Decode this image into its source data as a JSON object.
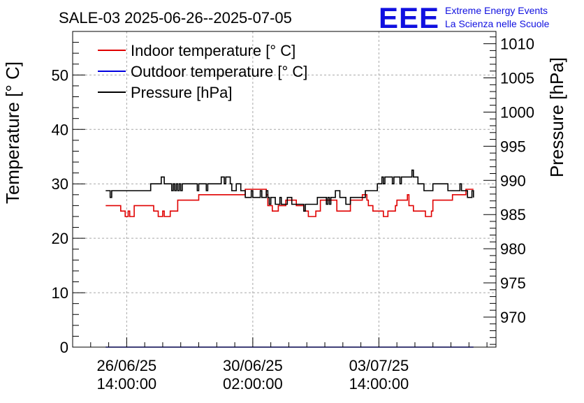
{
  "chart_data": {
    "type": "line",
    "title": "SALE-03 2025-06-26--2025-07-05",
    "logo": {
      "mark": "EEE",
      "line1": "Extreme Energy Events",
      "line2": "La Scienza nelle Scuole"
    },
    "ylabel_left": "Temperature [° C]",
    "ylabel_right": "Pressure [hPa]",
    "x_ticks": [
      {
        "date": "26/06/25",
        "time": "14:00:00",
        "hours": 0
      },
      {
        "date": "30/06/25",
        "time": "02:00:00",
        "hours": 84
      },
      {
        "date": "03/07/25",
        "time": "14:00:00",
        "hours": 168
      }
    ],
    "x_range_hours": [
      -36,
      246
    ],
    "y_left_range": [
      0,
      58
    ],
    "y_left_ticks": [
      0,
      10,
      20,
      30,
      40,
      50
    ],
    "y_right_range": [
      965.6,
      1011.8
    ],
    "y_right_ticks": [
      970,
      975,
      980,
      985,
      990,
      995,
      1000,
      1005,
      1010
    ],
    "grid": true,
    "legend_position": "top-left",
    "colors": {
      "indoor": "#e00000",
      "outdoor": "#0000e0",
      "pressure": "#000000",
      "logo": "#1010e0"
    },
    "series": [
      {
        "name": "Indoor temperature [° C]",
        "axis": "left",
        "color": "#e00000",
        "step": true,
        "points": [
          [
            -14,
            26
          ],
          [
            -6,
            26
          ],
          [
            -4,
            25
          ],
          [
            -2,
            25
          ],
          [
            -1,
            24
          ],
          [
            0,
            24
          ],
          [
            1,
            25
          ],
          [
            2,
            24
          ],
          [
            4,
            24
          ],
          [
            5,
            26
          ],
          [
            16,
            26
          ],
          [
            18,
            25
          ],
          [
            20,
            25
          ],
          [
            21,
            24
          ],
          [
            23,
            24
          ],
          [
            24,
            25
          ],
          [
            25,
            24
          ],
          [
            28,
            24
          ],
          [
            29,
            25
          ],
          [
            33,
            25
          ],
          [
            34,
            27
          ],
          [
            47,
            27
          ],
          [
            48,
            28
          ],
          [
            78,
            28
          ],
          [
            79,
            29
          ],
          [
            92,
            29
          ],
          [
            93,
            28
          ],
          [
            94,
            26
          ],
          [
            96,
            26
          ],
          [
            97,
            25
          ],
          [
            100,
            25
          ],
          [
            101,
            26
          ],
          [
            105,
            26
          ],
          [
            106,
            27
          ],
          [
            112,
            27
          ],
          [
            113,
            26
          ],
          [
            117,
            26
          ],
          [
            118,
            25
          ],
          [
            120,
            25
          ],
          [
            121,
            24
          ],
          [
            125,
            24
          ],
          [
            126,
            25
          ],
          [
            128,
            25
          ],
          [
            129,
            27
          ],
          [
            139,
            27
          ],
          [
            140,
            25
          ],
          [
            148,
            25
          ],
          [
            149,
            27
          ],
          [
            156,
            27
          ],
          [
            157,
            28
          ],
          [
            159,
            28
          ],
          [
            160,
            27
          ],
          [
            161,
            26
          ],
          [
            163,
            26
          ],
          [
            164,
            25
          ],
          [
            170,
            25
          ],
          [
            171,
            24
          ],
          [
            173,
            24
          ],
          [
            174,
            25
          ],
          [
            178,
            25
          ],
          [
            179,
            26
          ],
          [
            180,
            27
          ],
          [
            186,
            27
          ],
          [
            187,
            28
          ],
          [
            188,
            26
          ],
          [
            190,
            26
          ],
          [
            191,
            25
          ],
          [
            198,
            25
          ],
          [
            199,
            24
          ],
          [
            202,
            24
          ],
          [
            203,
            25
          ],
          [
            204,
            27
          ],
          [
            216,
            27
          ],
          [
            217,
            28
          ],
          [
            225,
            28
          ],
          [
            226,
            29
          ],
          [
            231,
            29
          ]
        ]
      },
      {
        "name": "Outdoor temperature [° C]",
        "axis": "left",
        "color": "#0000e0",
        "step": true,
        "points": [
          [
            -14,
            0
          ],
          [
            231,
            0
          ]
        ]
      },
      {
        "name": "Pressure [hPa]",
        "axis": "right",
        "color": "#000000",
        "step": true,
        "points": [
          [
            -14,
            988.5
          ],
          [
            -12,
            988.5
          ],
          [
            -11,
            987.5
          ],
          [
            -10,
            988.5
          ],
          [
            15,
            988.5
          ],
          [
            16,
            989.5
          ],
          [
            22,
            989.5
          ],
          [
            23,
            990.5
          ],
          [
            24,
            990.5
          ],
          [
            25,
            989.5
          ],
          [
            29,
            989.5
          ],
          [
            30,
            988.5
          ],
          [
            31,
            989.5
          ],
          [
            32,
            988.5
          ],
          [
            33,
            989.5
          ],
          [
            34,
            988.5
          ],
          [
            35,
            989.5
          ],
          [
            36,
            988.5
          ],
          [
            37,
            989.5
          ],
          [
            46,
            989.5
          ],
          [
            47,
            988.5
          ],
          [
            48,
            989.5
          ],
          [
            52,
            989.5
          ],
          [
            53,
            988.5
          ],
          [
            54,
            989.5
          ],
          [
            62,
            989.5
          ],
          [
            63,
            990.5
          ],
          [
            64,
            990.5
          ],
          [
            65,
            989.5
          ],
          [
            66,
            990.5
          ],
          [
            68,
            990.5
          ],
          [
            69,
            989.5
          ],
          [
            70,
            988.5
          ],
          [
            72,
            988.5
          ],
          [
            73,
            989.5
          ],
          [
            75,
            989.5
          ],
          [
            76,
            988.5
          ],
          [
            78,
            988.5
          ],
          [
            79,
            987.5
          ],
          [
            82,
            987.5
          ],
          [
            83,
            988.5
          ],
          [
            84,
            987.5
          ],
          [
            88,
            987.5
          ],
          [
            89,
            988.5
          ],
          [
            90,
            987.5
          ],
          [
            92,
            987.5
          ],
          [
            93,
            988.5
          ],
          [
            94,
            987.5
          ],
          [
            95,
            986.5
          ],
          [
            96,
            987.5
          ],
          [
            98,
            987.5
          ],
          [
            99,
            986.5
          ],
          [
            101,
            986.5
          ],
          [
            102,
            987.5
          ],
          [
            103,
            986.5
          ],
          [
            106,
            986.5
          ],
          [
            107,
            987.5
          ],
          [
            109,
            987.5
          ],
          [
            110,
            986.5
          ],
          [
            117,
            986.5
          ],
          [
            118,
            985.5
          ],
          [
            119,
            986.5
          ],
          [
            126,
            986.5
          ],
          [
            127,
            987.5
          ],
          [
            132,
            987.5
          ],
          [
            133,
            986.5
          ],
          [
            134,
            987.5
          ],
          [
            135,
            986.5
          ],
          [
            136,
            987.5
          ],
          [
            138,
            987.5
          ],
          [
            139,
            988.5
          ],
          [
            141,
            988.5
          ],
          [
            142,
            987.5
          ],
          [
            145,
            987.5
          ],
          [
            146,
            986.5
          ],
          [
            148,
            986.5
          ],
          [
            149,
            987.5
          ],
          [
            158,
            987.5
          ],
          [
            159,
            988.5
          ],
          [
            166,
            988.5
          ],
          [
            167,
            989.5
          ],
          [
            169,
            989.5
          ],
          [
            170,
            990.5
          ],
          [
            171,
            989.5
          ],
          [
            172,
            990.5
          ],
          [
            176,
            990.5
          ],
          [
            177,
            989.5
          ],
          [
            178,
            990.5
          ],
          [
            181,
            990.5
          ],
          [
            182,
            989.5
          ],
          [
            183,
            990.5
          ],
          [
            189,
            990.5
          ],
          [
            190,
            991.5
          ],
          [
            191,
            990.5
          ],
          [
            193,
            990.5
          ],
          [
            194,
            989.5
          ],
          [
            197,
            989.5
          ],
          [
            198,
            988.5
          ],
          [
            203,
            988.5
          ],
          [
            204,
            989.5
          ],
          [
            213,
            989.5
          ],
          [
            214,
            988.5
          ],
          [
            221,
            988.5
          ],
          [
            222,
            989.5
          ],
          [
            223,
            988.5
          ],
          [
            226,
            988.5
          ],
          [
            227,
            987.5
          ],
          [
            229,
            987.5
          ],
          [
            230,
            988.5
          ],
          [
            231,
            987.5
          ]
        ]
      }
    ]
  }
}
